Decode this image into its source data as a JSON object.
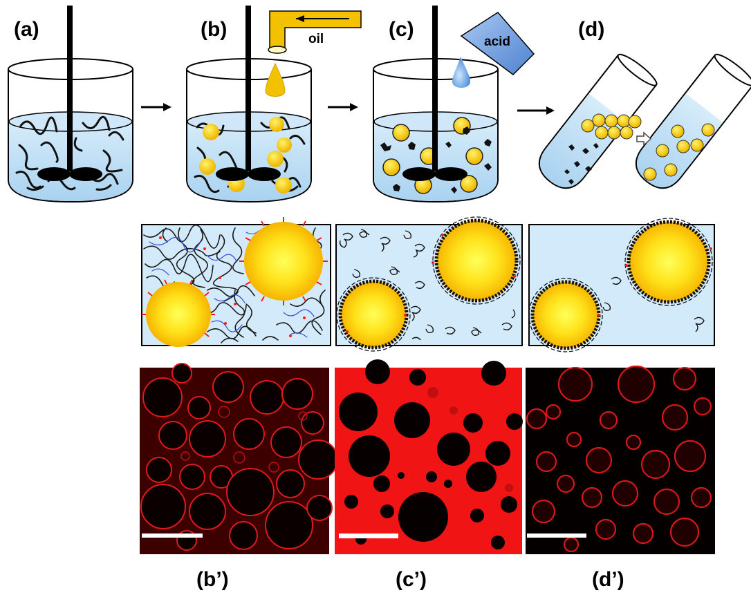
{
  "labels": {
    "a": "(a)",
    "b": "(b)",
    "c": "(c)",
    "d": "(d)",
    "b_prime": "(b’)",
    "c_prime": "(c’)",
    "d_prime": "(d’)"
  },
  "tags": {
    "oil": "oil",
    "acid": "acid"
  },
  "colors": {
    "water": "#bfe0f5",
    "oil_droplet": "#ffd200",
    "fluorescence": "#e00000",
    "acid_container": "#6f9fdc",
    "oil_pipe": "#f2c200"
  },
  "icons": {
    "stirrer": "impeller-stirrer-icon",
    "arrow": "right-arrow-icon",
    "transfer_arrow": "hollow-arrow-icon"
  }
}
